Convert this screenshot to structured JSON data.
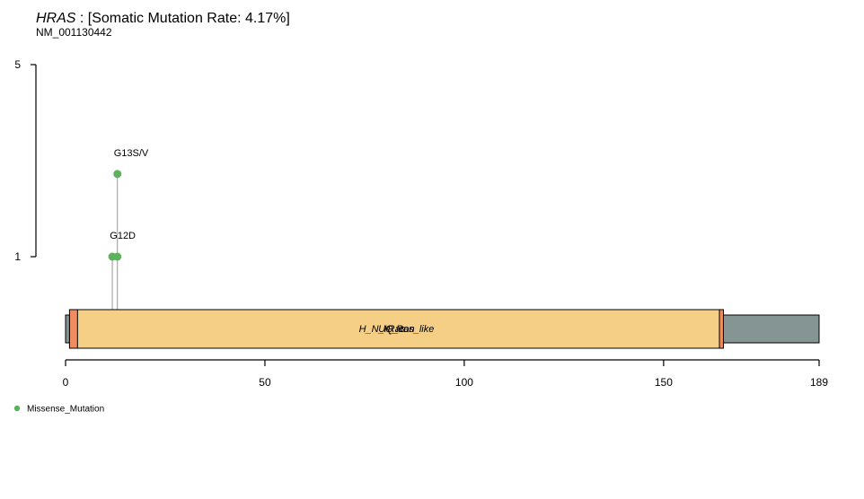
{
  "chart_data": {
    "type": "lollipop",
    "title": {
      "gene": "HRAS",
      "rest": " : [Somatic Mutation Rate: 4.17%]"
    },
    "subtitle": "NM_001130442",
    "protein_length": 189,
    "x_ticks": [
      0,
      50,
      100,
      150,
      189
    ],
    "y_axis": {
      "ticks": [
        1,
        5
      ],
      "scale": "log",
      "lim": [
        1,
        5
      ]
    },
    "domains": [
      {
        "name": "H_N_K_Ras_like",
        "start": 1,
        "end": 165,
        "color": "#F5CF85"
      },
      {
        "name": "UQ_con",
        "start": 1,
        "end": 165,
        "color": "#F5CF85"
      },
      {
        "name": "Ras",
        "start": 3,
        "end": 164,
        "color": "#F5CF85"
      }
    ],
    "domain_edge_color": "#F08C5F",
    "backbone_color": "#859593",
    "mutations": [
      {
        "pos": 12,
        "count": 1,
        "type": "Missense_Mutation"
      },
      {
        "pos": 13,
        "count": 1,
        "type": "Missense_Mutation"
      },
      {
        "pos": 13,
        "count": 2,
        "type": "Missense_Mutation"
      }
    ],
    "labels": [
      {
        "pos": 12,
        "count": 1,
        "text": "G12D"
      },
      {
        "pos": 13,
        "count": 2,
        "text": "G13S/V"
      }
    ],
    "legend": [
      {
        "label": "Missense_Mutation",
        "color": "#5CB25A"
      }
    ],
    "legend_position": "bottom-left"
  }
}
